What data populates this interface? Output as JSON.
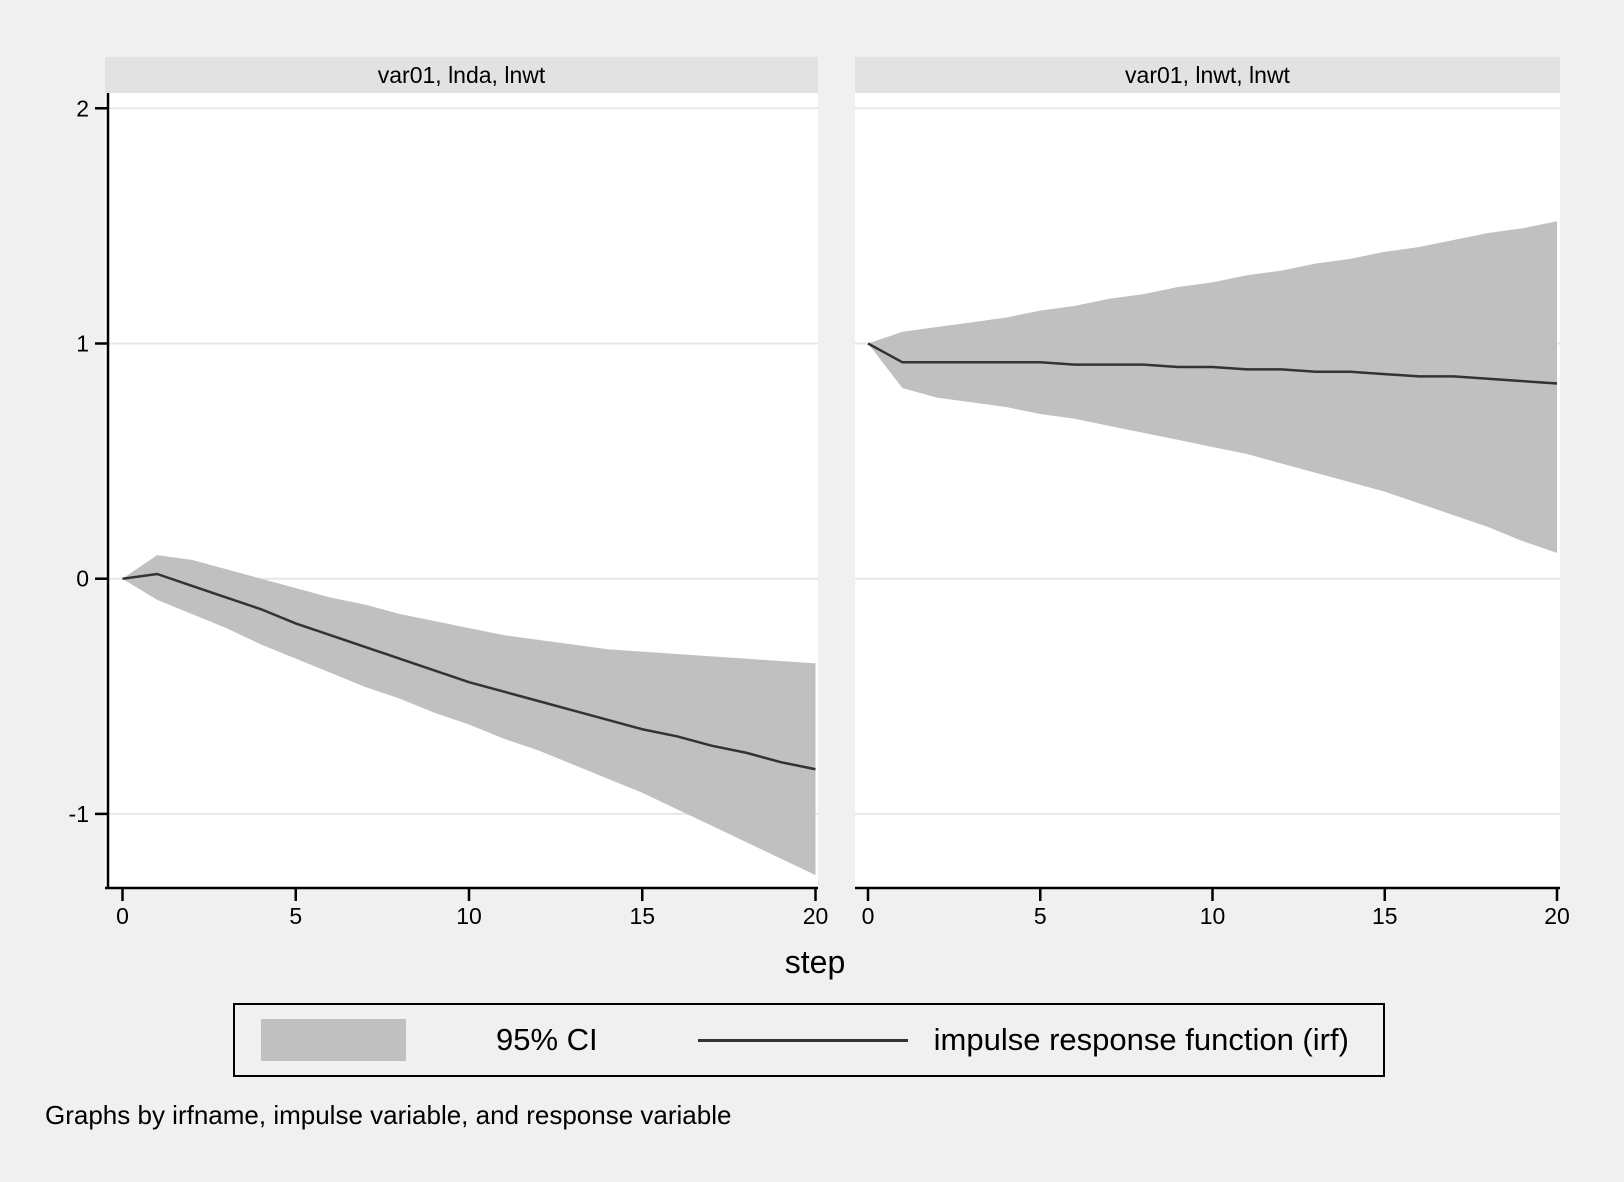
{
  "figure": {
    "xlabel": "step",
    "caption": "Graphs by irfname, impulse variable, and response variable",
    "background": "#f0f0f0",
    "strip_background": "#e2e2e2",
    "plot_background": "#ffffff",
    "grid_color": "#e7e7e7",
    "band_color": "#c0c0c0",
    "line_color": "#333333",
    "axis_color": "#000000"
  },
  "legend": {
    "ci_label": "95% CI",
    "irf_label": "impulse response function (irf)"
  },
  "chart_data": [
    {
      "type": "area",
      "title": "var01, lnda, lnwt",
      "xlabel": "step",
      "x_ticks": [
        0,
        5,
        10,
        15,
        20
      ],
      "y_ticks": [
        2,
        1,
        0,
        -1
      ],
      "xlim": [
        0,
        20
      ],
      "ylim": [
        -1.315,
        2.065
      ],
      "grid": true,
      "x": [
        0,
        1,
        2,
        3,
        4,
        5,
        6,
        7,
        8,
        9,
        10,
        11,
        12,
        13,
        14,
        15,
        16,
        17,
        18,
        19,
        20
      ],
      "series": [
        {
          "name": "95% CI upper",
          "values": [
            0.0,
            0.1,
            0.08,
            0.04,
            0.0,
            -0.04,
            -0.08,
            -0.11,
            -0.15,
            -0.18,
            -0.21,
            -0.24,
            -0.26,
            -0.28,
            -0.3,
            -0.31,
            -0.32,
            -0.33,
            -0.34,
            -0.35,
            -0.36
          ]
        },
        {
          "name": "95% CI lower",
          "values": [
            0.0,
            -0.09,
            -0.15,
            -0.21,
            -0.28,
            -0.34,
            -0.4,
            -0.46,
            -0.51,
            -0.57,
            -0.62,
            -0.68,
            -0.73,
            -0.79,
            -0.85,
            -0.91,
            -0.98,
            -1.05,
            -1.12,
            -1.19,
            -1.26
          ]
        },
        {
          "name": "impulse response function (irf)",
          "values": [
            0.0,
            0.02,
            -0.03,
            -0.08,
            -0.13,
            -0.19,
            -0.24,
            -0.29,
            -0.34,
            -0.39,
            -0.44,
            -0.48,
            -0.52,
            -0.56,
            -0.6,
            -0.64,
            -0.67,
            -0.71,
            -0.74,
            -0.78,
            -0.81
          ]
        }
      ]
    },
    {
      "type": "area",
      "title": "var01, lnwt, lnwt",
      "xlabel": "step",
      "x_ticks": [
        0,
        5,
        10,
        15,
        20
      ],
      "y_ticks": [
        2,
        1,
        0,
        -1
      ],
      "xlim": [
        0,
        20
      ],
      "ylim": [
        -1.315,
        2.065
      ],
      "grid": true,
      "x": [
        0,
        1,
        2,
        3,
        4,
        5,
        6,
        7,
        8,
        9,
        10,
        11,
        12,
        13,
        14,
        15,
        16,
        17,
        18,
        19,
        20
      ],
      "series": [
        {
          "name": "95% CI upper",
          "values": [
            1.0,
            1.05,
            1.07,
            1.09,
            1.11,
            1.14,
            1.16,
            1.19,
            1.21,
            1.24,
            1.26,
            1.29,
            1.31,
            1.34,
            1.36,
            1.39,
            1.41,
            1.44,
            1.47,
            1.49,
            1.52
          ]
        },
        {
          "name": "95% CI lower",
          "values": [
            1.0,
            0.81,
            0.77,
            0.75,
            0.73,
            0.7,
            0.68,
            0.65,
            0.62,
            0.59,
            0.56,
            0.53,
            0.49,
            0.45,
            0.41,
            0.37,
            0.32,
            0.27,
            0.22,
            0.16,
            0.11
          ]
        },
        {
          "name": "impulse response function (irf)",
          "values": [
            1.0,
            0.92,
            0.92,
            0.92,
            0.92,
            0.92,
            0.91,
            0.91,
            0.91,
            0.9,
            0.9,
            0.89,
            0.89,
            0.88,
            0.88,
            0.87,
            0.86,
            0.86,
            0.85,
            0.84,
            0.83
          ]
        }
      ]
    }
  ]
}
